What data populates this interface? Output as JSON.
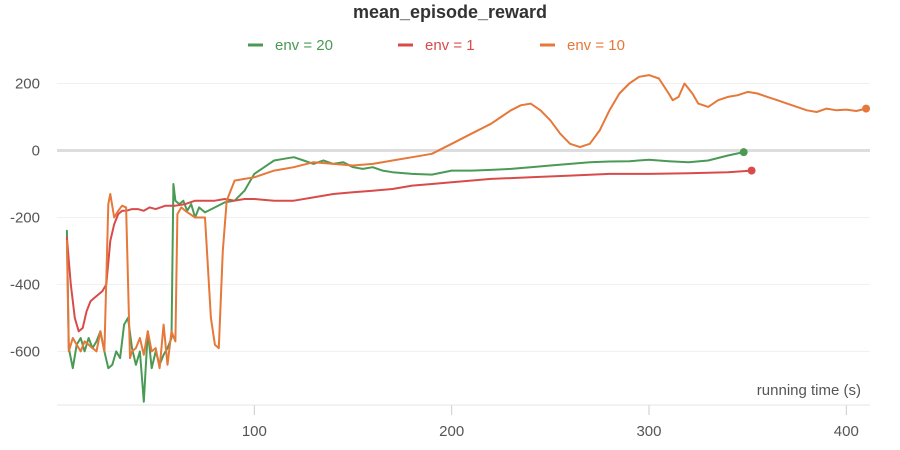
{
  "chart_data": {
    "type": "line",
    "title": "mean_episode_reward",
    "xlabel": "running time (s)",
    "ylabel": "",
    "xlim": [
      0,
      412
    ],
    "ylim": [
      -760,
      300
    ],
    "x_ticks": [
      100,
      200,
      300,
      400
    ],
    "y_ticks": [
      200,
      0,
      -200,
      -400,
      -600
    ],
    "grid": true,
    "legend_position": "top",
    "series": [
      {
        "name": "env = 20",
        "color": "#4a9a55",
        "x": [
          5,
          6,
          8,
          10,
          12,
          14,
          16,
          18,
          20,
          22,
          24,
          26,
          28,
          30,
          32,
          34,
          36,
          38,
          40,
          42,
          44,
          46,
          48,
          50,
          52,
          54,
          56,
          58,
          59,
          60,
          62,
          64,
          66,
          68,
          70,
          72,
          75,
          80,
          85,
          90,
          95,
          100,
          105,
          110,
          115,
          120,
          125,
          130,
          135,
          140,
          145,
          150,
          155,
          160,
          165,
          170,
          180,
          190,
          200,
          210,
          220,
          230,
          240,
          250,
          260,
          270,
          280,
          290,
          300,
          310,
          320,
          330,
          340,
          348
        ],
        "y": [
          -240,
          -590,
          -650,
          -580,
          -560,
          -600,
          -560,
          -590,
          -570,
          -540,
          -600,
          -650,
          -640,
          -600,
          -620,
          -520,
          -500,
          -590,
          -640,
          -600,
          -750,
          -540,
          -650,
          -600,
          -640,
          -610,
          -590,
          -560,
          -100,
          -150,
          -160,
          -150,
          -180,
          -160,
          -200,
          -170,
          -185,
          -170,
          -155,
          -150,
          -120,
          -70,
          -50,
          -30,
          -25,
          -20,
          -30,
          -40,
          -30,
          -40,
          -35,
          -50,
          -55,
          -50,
          -60,
          -65,
          -70,
          -72,
          -60,
          -60,
          -58,
          -55,
          -50,
          -45,
          -40,
          -35,
          -33,
          -32,
          -28,
          -32,
          -35,
          -30,
          -15,
          -5
        ]
      },
      {
        "name": "env = 1",
        "color": "#d94b4b",
        "x": [
          5,
          7,
          9,
          11,
          13,
          15,
          17,
          19,
          21,
          23,
          25,
          27,
          29,
          31,
          33,
          35,
          38,
          41,
          44,
          47,
          50,
          55,
          60,
          65,
          70,
          75,
          80,
          85,
          90,
          95,
          100,
          110,
          120,
          130,
          140,
          150,
          160,
          170,
          180,
          190,
          200,
          220,
          240,
          260,
          280,
          300,
          320,
          340,
          352
        ],
        "y": [
          -260,
          -400,
          -500,
          -540,
          -530,
          -480,
          -450,
          -440,
          -430,
          -420,
          -400,
          -270,
          -220,
          -190,
          -180,
          -180,
          -175,
          -175,
          -180,
          -170,
          -175,
          -165,
          -165,
          -160,
          -150,
          -150,
          -150,
          -145,
          -150,
          -145,
          -145,
          -150,
          -150,
          -140,
          -130,
          -125,
          -120,
          -115,
          -105,
          -100,
          -95,
          -85,
          -80,
          -75,
          -70,
          -70,
          -68,
          -65,
          -60
        ]
      },
      {
        "name": "env = 10",
        "color": "#e6783a",
        "x": [
          5,
          6,
          8,
          10,
          12,
          14,
          16,
          18,
          20,
          22,
          24,
          26,
          27,
          29,
          31,
          33,
          35,
          37,
          38,
          40,
          42,
          44,
          46,
          48,
          50,
          52,
          54,
          56,
          58,
          60,
          61,
          63,
          65,
          70,
          75,
          78,
          80,
          82,
          84,
          86,
          90,
          95,
          100,
          105,
          110,
          120,
          130,
          140,
          150,
          160,
          170,
          180,
          190,
          200,
          210,
          220,
          225,
          230,
          235,
          240,
          245,
          250,
          255,
          260,
          265,
          270,
          275,
          280,
          285,
          290,
          295,
          300,
          305,
          310,
          312,
          315,
          318,
          322,
          325,
          330,
          335,
          340,
          345,
          350,
          355,
          360,
          365,
          370,
          375,
          380,
          385,
          390,
          395,
          400,
          405,
          410
        ],
        "y": [
          -270,
          -600,
          -560,
          -580,
          -600,
          -570,
          -580,
          -590,
          -600,
          -540,
          -600,
          -160,
          -130,
          -200,
          -180,
          -165,
          -170,
          -620,
          -600,
          -590,
          -560,
          -610,
          -540,
          -600,
          -590,
          -650,
          -520,
          -640,
          -540,
          -570,
          -190,
          -170,
          -180,
          -200,
          -200,
          -500,
          -580,
          -590,
          -300,
          -150,
          -90,
          -85,
          -80,
          -70,
          -60,
          -50,
          -35,
          -40,
          -45,
          -40,
          -30,
          -20,
          -10,
          20,
          50,
          80,
          100,
          120,
          135,
          140,
          120,
          90,
          50,
          20,
          10,
          20,
          60,
          120,
          170,
          200,
          220,
          225,
          215,
          170,
          150,
          160,
          200,
          170,
          140,
          130,
          150,
          160,
          165,
          175,
          170,
          160,
          150,
          140,
          130,
          120,
          115,
          125,
          120,
          122,
          118,
          125
        ]
      }
    ]
  }
}
